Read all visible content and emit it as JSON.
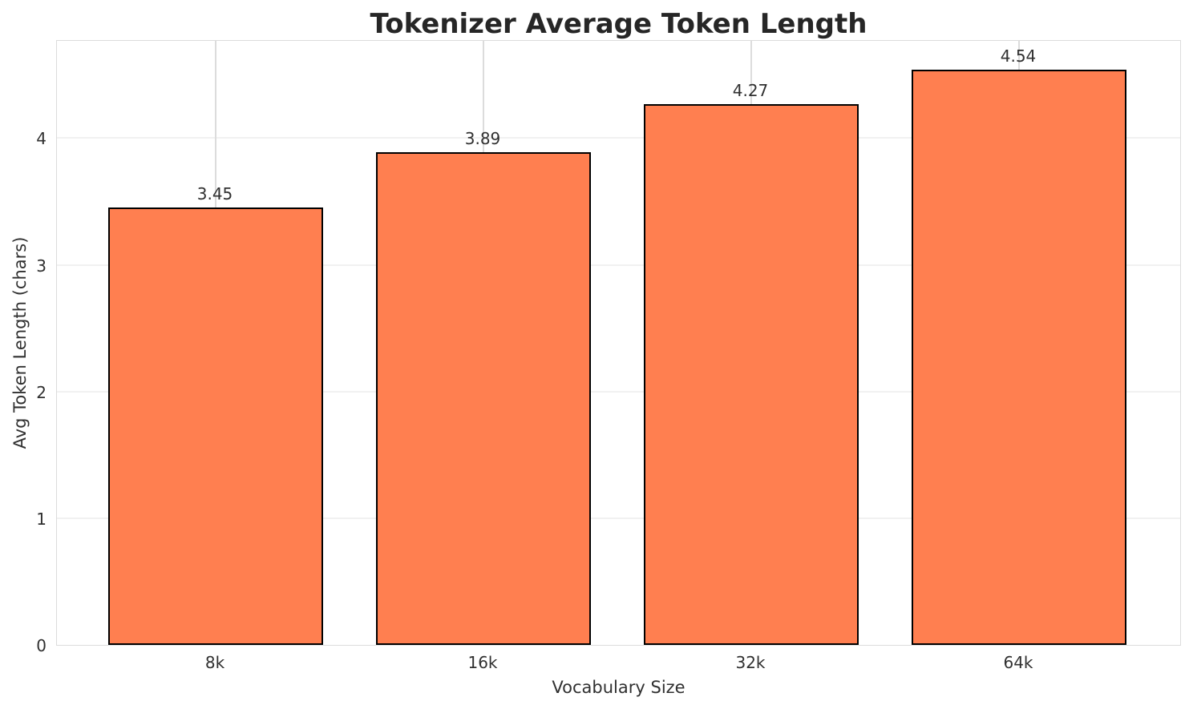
{
  "chart_data": {
    "type": "bar",
    "title": "Tokenizer Average Token Length",
    "xlabel": "Vocabulary Size",
    "ylabel": "Avg Token Length (chars)",
    "categories": [
      "8k",
      "16k",
      "32k",
      "64k"
    ],
    "values": [
      3.45,
      3.89,
      4.27,
      4.54
    ],
    "value_labels": [
      "3.45",
      "3.89",
      "4.27",
      "4.54"
    ],
    "yticks": [
      0,
      1,
      2,
      3,
      4
    ],
    "ytick_labels": [
      "0",
      "1",
      "2",
      "3",
      "4"
    ],
    "ylim": [
      0,
      4.78
    ],
    "grid": true,
    "legend": null,
    "colors": {
      "bar_fill": "#FF7F50",
      "bar_edge": "#000000",
      "background": "#FFFFFF",
      "gridline_horizontal": "#F1F1F1",
      "gridline_vertical": "#DCDCDC",
      "spine": "#DCDCDC",
      "title_text": "#262626",
      "label_text": "#303030"
    }
  }
}
